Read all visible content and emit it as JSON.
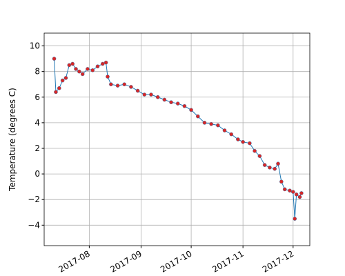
{
  "chart_data": {
    "type": "line",
    "y_label": "Temperature (degrees C)",
    "x": [
      "2017-07-11",
      "2017-07-12",
      "2017-07-14",
      "2017-07-16",
      "2017-07-18",
      "2017-07-20",
      "2017-07-22",
      "2017-07-24",
      "2017-07-26",
      "2017-07-28",
      "2017-07-31",
      "2017-08-03",
      "2017-08-06",
      "2017-08-09",
      "2017-08-11",
      "2017-08-12",
      "2017-08-14",
      "2017-08-18",
      "2017-08-22",
      "2017-08-26",
      "2017-08-30",
      "2017-09-03",
      "2017-09-07",
      "2017-09-11",
      "2017-09-15",
      "2017-09-19",
      "2017-09-23",
      "2017-09-27",
      "2017-10-01",
      "2017-10-05",
      "2017-10-09",
      "2017-10-13",
      "2017-10-17",
      "2017-10-21",
      "2017-10-25",
      "2017-10-29",
      "2017-11-01",
      "2017-11-05",
      "2017-11-08",
      "2017-11-11",
      "2017-11-14",
      "2017-11-17",
      "2017-11-20",
      "2017-11-22",
      "2017-11-24",
      "2017-11-26",
      "2017-11-29",
      "2017-12-01",
      "2017-12-02",
      "2017-12-03",
      "2017-12-05",
      "2017-12-06"
    ],
    "series": [
      {
        "color": "#1f77b4",
        "marker_color": "#d62728",
        "values": [
          9.0,
          6.4,
          6.7,
          7.3,
          7.5,
          8.5,
          8.6,
          8.2,
          8.0,
          7.8,
          8.2,
          8.1,
          8.4,
          8.6,
          8.7,
          7.6,
          7.0,
          6.9,
          7.0,
          6.8,
          6.5,
          6.2,
          6.2,
          6.0,
          5.8,
          5.6,
          5.5,
          5.3,
          5.0,
          4.5,
          4.0,
          3.9,
          3.8,
          3.4,
          3.1,
          2.7,
          2.5,
          2.4,
          1.8,
          1.4,
          0.7,
          0.5,
          0.4,
          0.8,
          -0.6,
          -1.2,
          -1.3,
          -1.4,
          -3.5,
          -1.6,
          -1.8,
          -1.5
        ]
      }
    ],
    "xlim": [
      "2017-07-05",
      "2017-12-11"
    ],
    "xticks": [
      {
        "value": "2017-08-01",
        "label": "2017-08"
      },
      {
        "value": "2017-09-01",
        "label": "2017-09"
      },
      {
        "value": "2017-10-01",
        "label": "2017-10"
      },
      {
        "value": "2017-11-01",
        "label": "2017-11"
      },
      {
        "value": "2017-12-01",
        "label": "2017-12"
      }
    ],
    "ylim": [
      -5.6,
      11.0
    ],
    "yticks": [
      {
        "value": -4,
        "label": "−4"
      },
      {
        "value": -2,
        "label": "−2"
      },
      0,
      2,
      4,
      6,
      8,
      10
    ],
    "grid": true
  }
}
